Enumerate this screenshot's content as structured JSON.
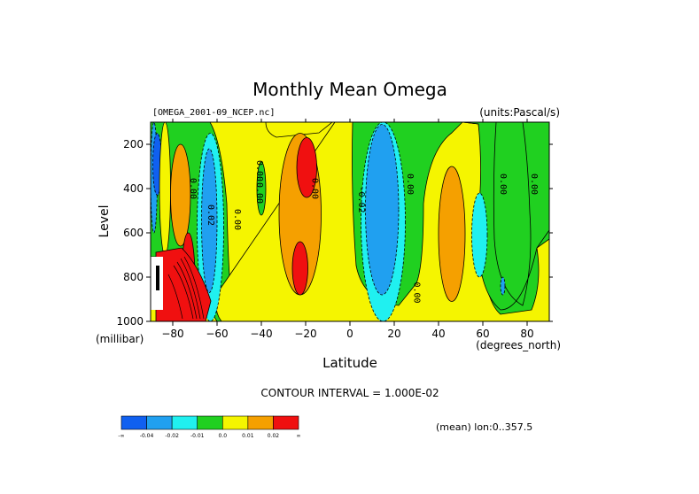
{
  "chart_data": {
    "type": "heatmap",
    "title": "Monthly Mean Omega",
    "source_label": "[OMEGA_2001-09_NCEP.nc]",
    "units_label": "(units:Pascal/s)",
    "xlabel": "Latitude",
    "x_unit_label": "(degrees_north)",
    "ylabel": "Level",
    "y_unit_label": "(millibar)",
    "xlim": [
      -90,
      90
    ],
    "ylim": [
      1000,
      100
    ],
    "x_ticks": [
      -80,
      -60,
      -40,
      -20,
      0,
      20,
      40,
      60,
      80
    ],
    "y_ticks": [
      200,
      400,
      600,
      800,
      1000
    ],
    "contour_interval_label": "CONTOUR INTERVAL = 1.000E-02",
    "mean_label": "(mean) lon:0..357.5",
    "contour_labels": [
      {
        "lat": -72,
        "level": 400,
        "text": "0.00"
      },
      {
        "lat": -64,
        "level": 520,
        "text": "0.02"
      },
      {
        "lat": -52,
        "level": 540,
        "text": "0.00"
      },
      {
        "lat": -42,
        "level": 320,
        "text": "0.00"
      },
      {
        "lat": -42,
        "level": 420,
        "text": "0.00"
      },
      {
        "lat": -17,
        "level": 400,
        "text": "0.00"
      },
      {
        "lat": 4,
        "level": 450,
        "text": "-0.02"
      },
      {
        "lat": 26,
        "level": 380,
        "text": "0.00"
      },
      {
        "lat": 29,
        "level": 870,
        "text": "0.00"
      },
      {
        "lat": 68,
        "level": 380,
        "text": "0.00"
      },
      {
        "lat": 82,
        "level": 380,
        "text": "0.00"
      }
    ],
    "colorbar": {
      "colors": [
        "#1060f0",
        "#20a0f0",
        "#20f0f0",
        "#20d020",
        "#f5f500",
        "#f5a000",
        "#f01010"
      ],
      "labels": [
        "-∞",
        "-0.04",
        "-0.02",
        "-0.01",
        "0.0",
        "0.01",
        "0.02",
        "∞"
      ]
    },
    "bands": [
      {
        "lat": [
          -90,
          -87
        ],
        "level": [
          100,
          600
        ],
        "color": "#20a0f0"
      },
      {
        "lat": [
          -89,
          -85
        ],
        "level": [
          150,
          430
        ],
        "color": "#1060f0"
      },
      {
        "lat": [
          -86,
          -81
        ],
        "level": [
          100,
          700
        ],
        "color": "#f5f500"
      },
      {
        "lat": [
          -81,
          -72
        ],
        "level": [
          200,
          660
        ],
        "color": "#f5a000"
      },
      {
        "lat": [
          -76,
          -70
        ],
        "level": [
          600,
          1000
        ],
        "color": "#f01010"
      },
      {
        "lat": [
          -69,
          -57
        ],
        "level": [
          150,
          1000
        ],
        "color": "#20f0f0"
      },
      {
        "lat": [
          -67,
          -60
        ],
        "level": [
          220,
          870
        ],
        "color": "#20a0f0"
      },
      {
        "lat": [
          -42,
          -38
        ],
        "level": [
          280,
          520
        ],
        "color": "#20d020"
      },
      {
        "lat": [
          -32,
          -13
        ],
        "level": [
          150,
          880
        ],
        "color": "#f5a000"
      },
      {
        "lat": [
          -26,
          -19
        ],
        "level": [
          640,
          880
        ],
        "color": "#f01010"
      },
      {
        "lat": [
          -24,
          -15
        ],
        "level": [
          170,
          440
        ],
        "color": "#f01010"
      },
      {
        "lat": [
          5,
          25
        ],
        "level": [
          100,
          1000
        ],
        "color": "#20f0f0"
      },
      {
        "lat": [
          7,
          22
        ],
        "level": [
          110,
          880
        ],
        "color": "#20a0f0"
      },
      {
        "lat": [
          40,
          52
        ],
        "level": [
          300,
          910
        ],
        "color": "#f5a000"
      },
      {
        "lat": [
          55,
          62
        ],
        "level": [
          420,
          800
        ],
        "color": "#20f0f0"
      },
      {
        "lat": [
          68,
          70
        ],
        "level": [
          800,
          880
        ],
        "color": "#20a0f0"
      }
    ]
  }
}
